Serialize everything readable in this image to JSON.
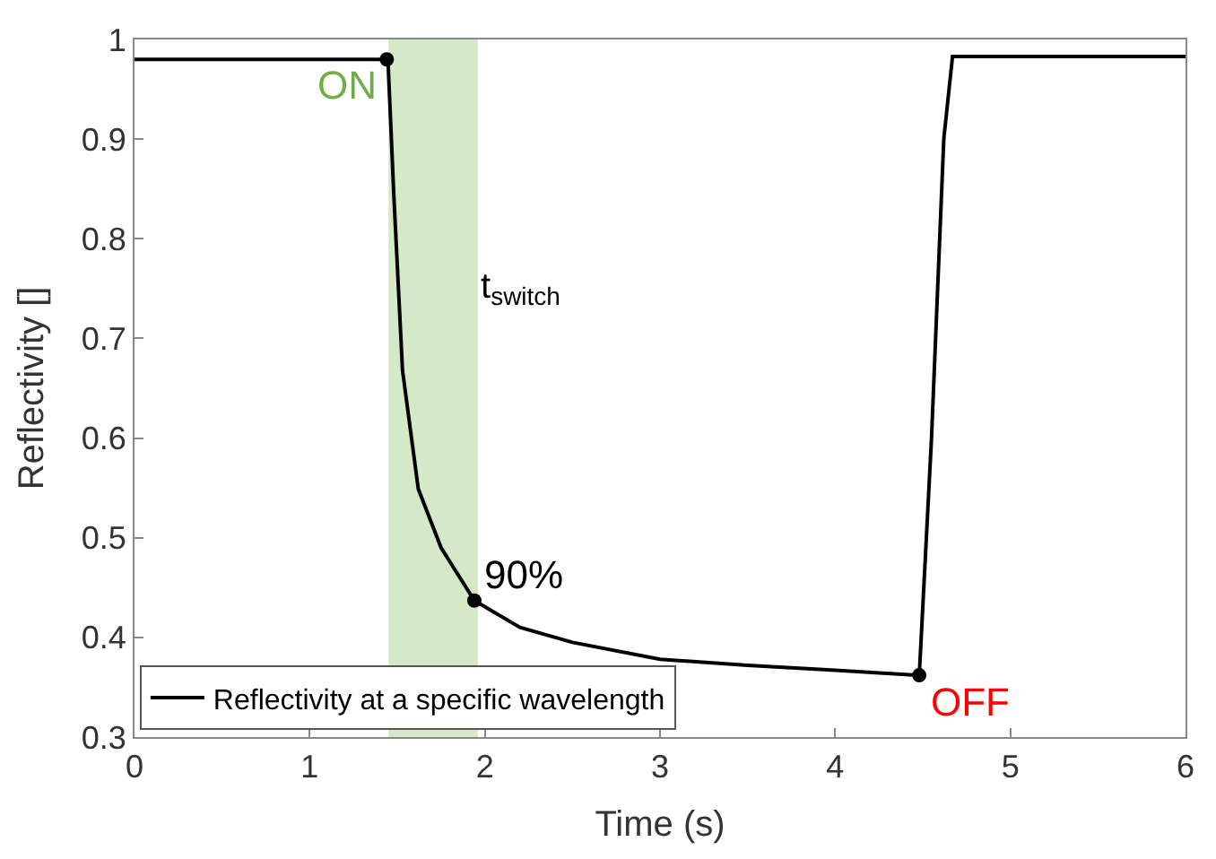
{
  "chart_data": {
    "type": "line",
    "xlabel": "Time (s)",
    "ylabel": "Reflectivity []",
    "xlim": [
      0,
      6
    ],
    "xticks": [
      0,
      1,
      2,
      3,
      4,
      5,
      6
    ],
    "ylim": [
      0.3,
      1
    ],
    "yticks": [
      0.3,
      0.4,
      0.5,
      0.6,
      0.7,
      0.8,
      0.9,
      1
    ],
    "grid": false,
    "legend": "bottom left",
    "marker": "none",
    "line_style": "solid",
    "series": [
      {
        "name": "Reflectivity at a specific wavelength",
        "color": "#000000",
        "x": [
          0,
          0.5,
          1.0,
          1.44,
          1.447,
          1.48,
          1.53,
          1.62,
          1.75,
          1.94,
          2.2,
          2.5,
          3.0,
          3.5,
          4.0,
          4.48,
          4.55,
          4.62,
          4.67,
          5.0,
          5.5,
          6.0
        ],
        "values": [
          0.98,
          0.98,
          0.98,
          0.98,
          0.979,
          0.845,
          0.668,
          0.549,
          0.49,
          0.437,
          0.41,
          0.395,
          0.378,
          0.372,
          0.367,
          0.362,
          0.6,
          0.9,
          0.983,
          0.983,
          0.983,
          0.983
        ]
      },
      {
        "type": "scatter",
        "marker": "circle",
        "color": "#000000",
        "x": [
          1.44,
          1.94,
          4.48
        ],
        "values": [
          0.98,
          0.437,
          0.362
        ]
      }
    ],
    "bands": [
      {
        "axis": "x",
        "from": 1.45,
        "to": 1.96,
        "label": "t$_{switch}$",
        "color": "#d5e8c8"
      }
    ],
    "annotations": [
      {
        "text": "ON",
        "x": 1.44,
        "y": 0.98
      },
      {
        "text": "90%",
        "x": 1.94,
        "y": 0.437
      },
      {
        "text": "OFF",
        "x": 4.48,
        "y": 0.362
      }
    ]
  }
}
